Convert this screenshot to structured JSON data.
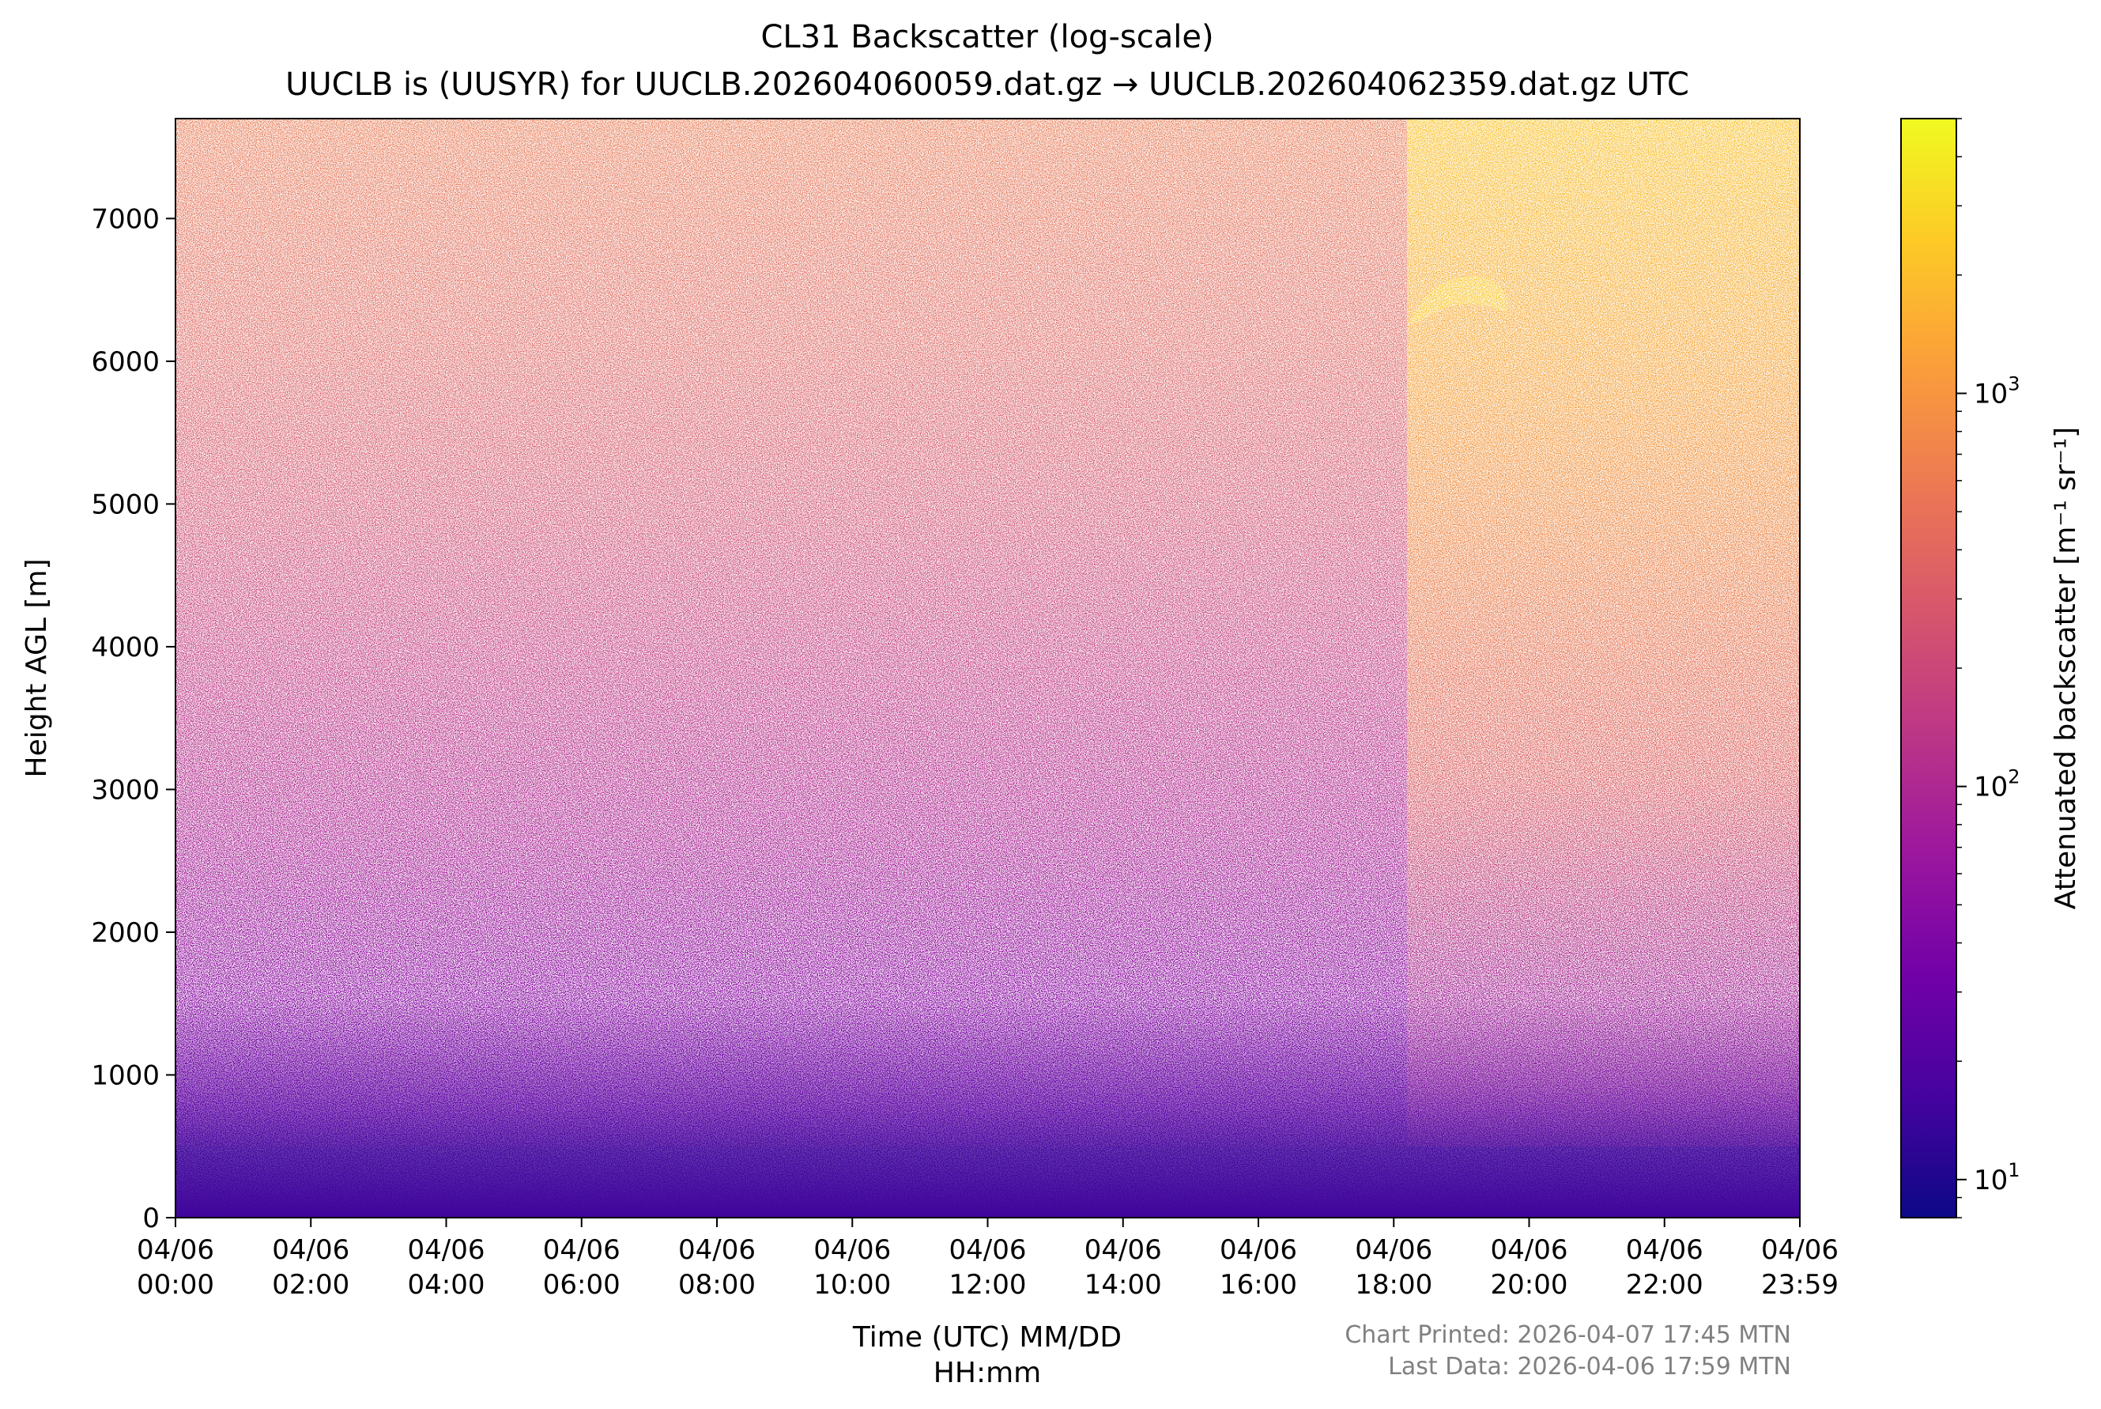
{
  "chart_data": {
    "type": "heatmap",
    "title": "CL31 Backscatter (log-scale)",
    "subtitle": "UUCLB is (UUSYR) for UUCLB.202604060059.dat.gz → UUCLB.202604062359.dat.gz UTC",
    "xlabel": [
      "Time (UTC) MM/DD",
      "HH:mm"
    ],
    "ylabel": "Height AGL [m]",
    "colorbar_label": "Attenuated backscatter [m⁻¹ sr⁻¹]",
    "colormap": "plasma",
    "ylim": [
      0,
      7700
    ],
    "y_ticks": [
      0,
      1000,
      2000,
      3000,
      4000,
      5000,
      6000,
      7000
    ],
    "x_range_hours": [
      0,
      24
    ],
    "x_ticks": [
      {
        "h": 0,
        "date": "04/06",
        "time": "00:00"
      },
      {
        "h": 2,
        "date": "04/06",
        "time": "02:00"
      },
      {
        "h": 4,
        "date": "04/06",
        "time": "04:00"
      },
      {
        "h": 6,
        "date": "04/06",
        "time": "06:00"
      },
      {
        "h": 8,
        "date": "04/06",
        "time": "08:00"
      },
      {
        "h": 10,
        "date": "04/06",
        "time": "10:00"
      },
      {
        "h": 12,
        "date": "04/06",
        "time": "12:00"
      },
      {
        "h": 14,
        "date": "04/06",
        "time": "14:00"
      },
      {
        "h": 16,
        "date": "04/06",
        "time": "16:00"
      },
      {
        "h": 18,
        "date": "04/06",
        "time": "18:00"
      },
      {
        "h": 20,
        "date": "04/06",
        "time": "20:00"
      },
      {
        "h": 22,
        "date": "04/06",
        "time": "22:00"
      },
      {
        "h": 24,
        "date": "04/06",
        "time": "23:59"
      }
    ],
    "colorbar_range": [
      8,
      5000
    ],
    "colorbar_ticks": [
      {
        "value": 10,
        "base": "10",
        "exp": "1"
      },
      {
        "value": 100,
        "base": "10",
        "exp": "2"
      },
      {
        "value": 1000,
        "base": "10",
        "exp": "3"
      }
    ],
    "grid": false,
    "colors": [
      "#0d0887",
      "#46039f",
      "#7201a8",
      "#9c179e",
      "#bd3786",
      "#d8576b",
      "#ed7953",
      "#fb9f3a",
      "#fdca26",
      "#f0f921"
    ]
  },
  "footer": {
    "printed": "Chart Printed: 2026-04-07 17:45 MTN",
    "last_data": "Last Data: 2026-04-06 17:59 MTN"
  }
}
